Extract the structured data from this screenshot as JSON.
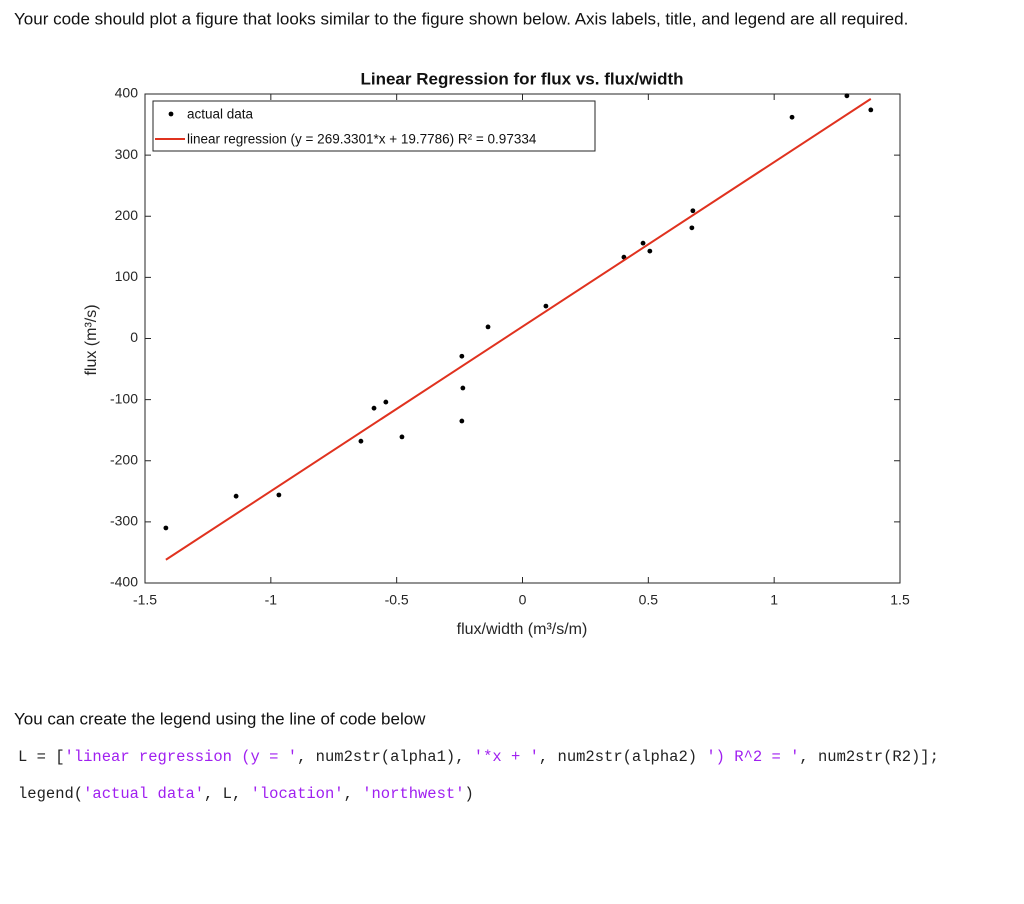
{
  "instruction": "Your code should plot a figure that looks similar to the figure shown below. Axis labels, title, and legend are all required.",
  "chart_data": {
    "type": "scatter",
    "title": "Linear Regression for flux vs. flux/width",
    "xlabel": "flux/width (m³/s/m)",
    "ylabel": "flux (m³/s)",
    "xlim": [
      -1.5,
      1.5
    ],
    "ylim": [
      -400,
      400
    ],
    "xticks": [
      -1.5,
      -1,
      -0.5,
      0,
      0.5,
      1,
      1.5
    ],
    "yticks": [
      -400,
      -300,
      -200,
      -100,
      0,
      100,
      200,
      300,
      400
    ],
    "legend": "northwest",
    "series": [
      {
        "name": "actual data",
        "color": "#000000",
        "type": "scatter",
        "x": [
          -1.417,
          -1.138,
          -0.968,
          -0.642,
          -0.59,
          -0.543,
          -0.479,
          -0.241,
          -0.237,
          -0.241,
          -0.137,
          0.093,
          0.403,
          0.479,
          0.506,
          0.677,
          0.673,
          1.071,
          1.289,
          1.384
        ],
        "values": [
          -310,
          -258,
          -256,
          -168,
          -114,
          -104,
          -161,
          -29,
          -81,
          -135,
          19,
          53,
          133,
          156,
          143,
          209,
          181,
          362,
          397,
          374
        ]
      },
      {
        "name": "linear regression (y = 269.3301*x + 19.7786) R² = 0.97334",
        "color": "#e0321f",
        "type": "line",
        "x": [
          -1.417,
          1.384
        ],
        "values": [
          -362,
          392
        ]
      }
    ]
  },
  "note": "You can create the legend using the line of code below",
  "code": [
    [
      "L = [",
      "'linear regression (y = '",
      ", num2str(alpha1), ",
      "'*x + '",
      ", num2str(alpha2) ",
      "') R^2 = '",
      ", num2str(R2)];"
    ],
    [
      "legend(",
      "'actual data'",
      ", L, ",
      "'location'",
      ", ",
      "'northwest'",
      ")"
    ]
  ]
}
